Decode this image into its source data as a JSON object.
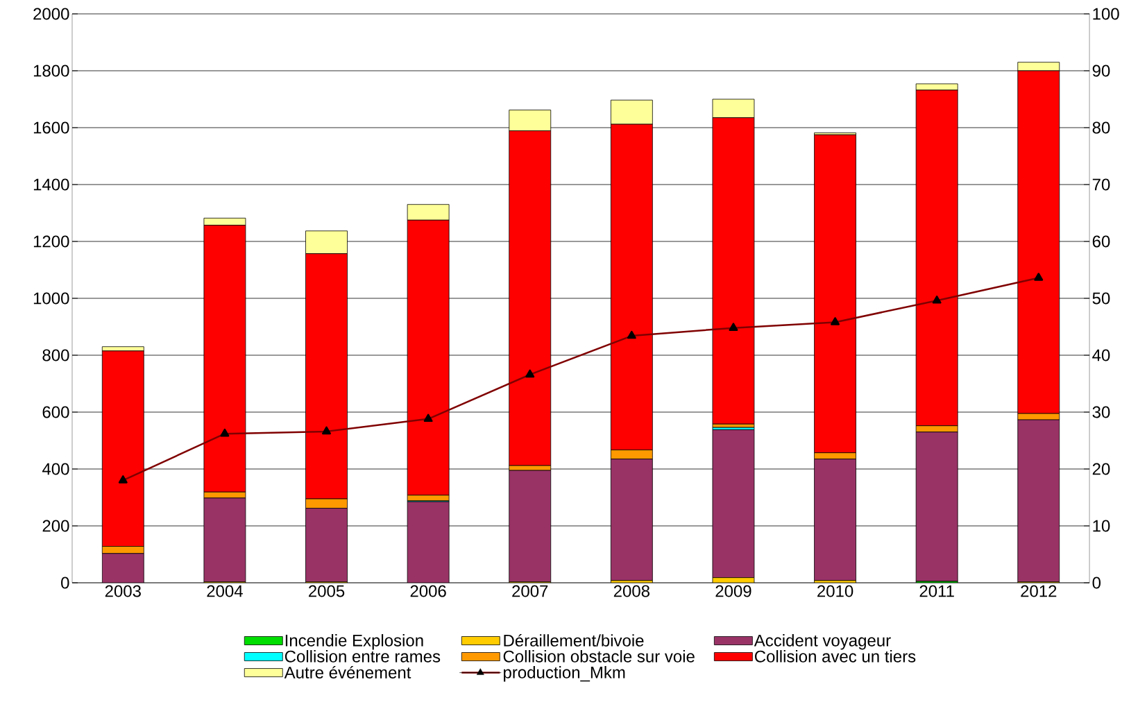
{
  "chart_data": {
    "type": "bar",
    "stacked": true,
    "categories": [
      "2003",
      "2004",
      "2005",
      "2006",
      "2007",
      "2008",
      "2009",
      "2010",
      "2011",
      "2012"
    ],
    "series": [
      {
        "name": "Incendie Explosion",
        "color": "#00dd00",
        "values": [
          0,
          0,
          0,
          0,
          0,
          0,
          0,
          0,
          5,
          0
        ]
      },
      {
        "name": "Déraillement/bivoie",
        "color": "#ffcc00",
        "values": [
          0,
          3,
          3,
          0,
          3,
          8,
          18,
          8,
          0,
          3
        ]
      },
      {
        "name": "Accident voyageur",
        "color": "#993366",
        "values": [
          103,
          295,
          259,
          285,
          392,
          427,
          520,
          427,
          525,
          570
        ]
      },
      {
        "name": "Collision entre rames",
        "color": "#00ffff",
        "values": [
          0,
          0,
          0,
          3,
          0,
          0,
          8,
          0,
          0,
          0
        ]
      },
      {
        "name": "Collision obstacle sur voie",
        "color": "#ff9900",
        "values": [
          25,
          21,
          33,
          20,
          17,
          32,
          12,
          22,
          22,
          22
        ]
      },
      {
        "name": "Collision avec un tiers",
        "color": "#ff0000",
        "values": [
          687,
          938,
          862,
          967,
          1177,
          1145,
          1077,
          1118,
          1180,
          1205
        ]
      },
      {
        "name": "Autre événement",
        "color": "#ffff99",
        "values": [
          15,
          25,
          80,
          55,
          73,
          85,
          65,
          7,
          22,
          30
        ]
      },
      {
        "name": "production_Mkm",
        "type": "line",
        "axis": "y2",
        "color": "#800000",
        "marker": "triangle",
        "values": [
          18,
          26.2,
          26.6,
          28.8,
          36.6,
          43.4,
          44.8,
          45.8,
          49.6,
          53.6
        ]
      }
    ],
    "ylim": [
      0,
      2000
    ],
    "yticks": [
      0,
      200,
      400,
      600,
      800,
      1000,
      1200,
      1400,
      1600,
      1800,
      2000
    ],
    "y2lim": [
      0,
      100
    ],
    "y2ticks": [
      0,
      10,
      20,
      30,
      40,
      50,
      60,
      70,
      80,
      90,
      100
    ],
    "grid": "y",
    "legend": "bottom"
  }
}
